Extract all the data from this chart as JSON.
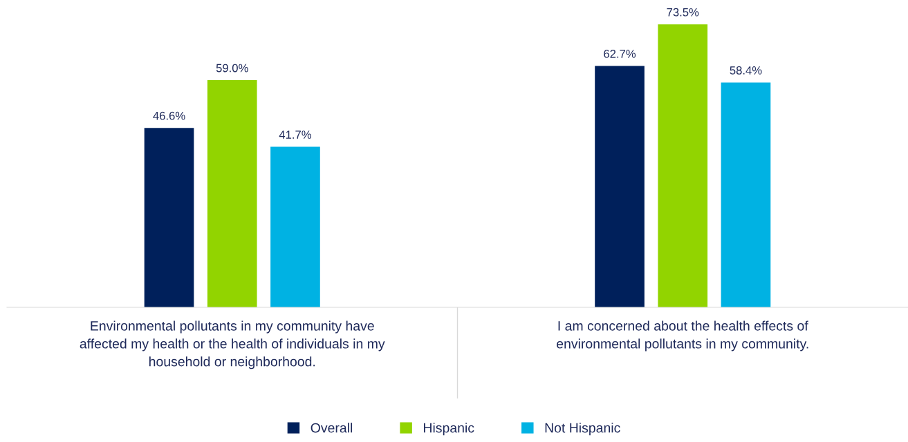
{
  "chart_data": {
    "type": "bar",
    "categories": [
      "Environmental pollutants in my community have\naffected my health or the health of individuals in my\nhousehold or neighborhood.",
      "I am concerned about the health effects of\nenvironmental pollutants in my community."
    ],
    "series": [
      {
        "name": "Overall",
        "color": "#00205b",
        "values": [
          46.6,
          62.7
        ],
        "value_labels": [
          "46.6%",
          "62.7%"
        ]
      },
      {
        "name": "Hispanic",
        "color": "#92d400",
        "values": [
          59.0,
          73.5
        ],
        "value_labels": [
          "59.0%",
          "73.5%"
        ]
      },
      {
        "name": "Not Hispanic",
        "color": "#00b2e3",
        "values": [
          41.7,
          58.4
        ],
        "value_labels": [
          "41.7%",
          "58.4%"
        ]
      }
    ],
    "tick_labels": "x",
    "grid": false,
    "legend": "bottom"
  }
}
